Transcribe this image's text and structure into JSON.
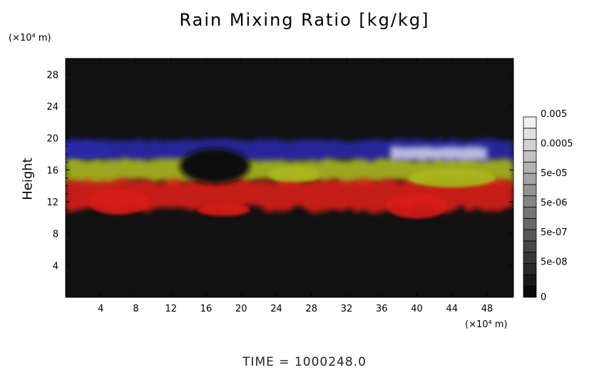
{
  "chart_data": {
    "type": "heatmap",
    "title": "Rain Mixing Ratio [kg/kg]",
    "ylabel": "Height",
    "y_unit": "(×10⁴ m)",
    "x_unit": "(×10⁴ m)",
    "xlim": [
      0,
      51
    ],
    "ylim": [
      0,
      30
    ],
    "xticks": [
      "4",
      "8",
      "12",
      "16",
      "20",
      "24",
      "28",
      "32",
      "36",
      "40",
      "44",
      "48"
    ],
    "xtick_values": [
      4,
      8,
      12,
      16,
      20,
      24,
      28,
      32,
      36,
      40,
      44,
      48
    ],
    "yticks": [
      "4",
      "8",
      "12",
      "16",
      "20",
      "24",
      "28"
    ],
    "ytick_values": [
      4,
      8,
      12,
      16,
      20,
      24,
      28
    ],
    "footer": "TIME = 1000248.0",
    "colorbar": {
      "labels": [
        "0",
        "5e-08",
        "5e-07",
        "5e-06",
        "5e-05",
        "0.0005",
        "0.005"
      ],
      "levels": 16
    },
    "layers": [
      {
        "color": "#2a2aa8",
        "y_range": [
          16.5,
          20
        ],
        "x_range": [
          0,
          51
        ]
      },
      {
        "color": "#a8b81c",
        "y_range": [
          14,
          17.5
        ],
        "x_range": [
          0,
          51
        ]
      },
      {
        "color": "#d81c14",
        "y_range": [
          10.5,
          15
        ],
        "x_range": [
          0,
          51
        ]
      },
      {
        "color": "#c8c8e8",
        "y_range": [
          17,
          19
        ],
        "x_range": [
          37,
          48
        ]
      }
    ],
    "colors": {
      "background": "#111111",
      "blue": "#2a2aa8",
      "yellow": "#a8b81c",
      "red": "#d81c14",
      "white": "#c8c8e8"
    }
  }
}
